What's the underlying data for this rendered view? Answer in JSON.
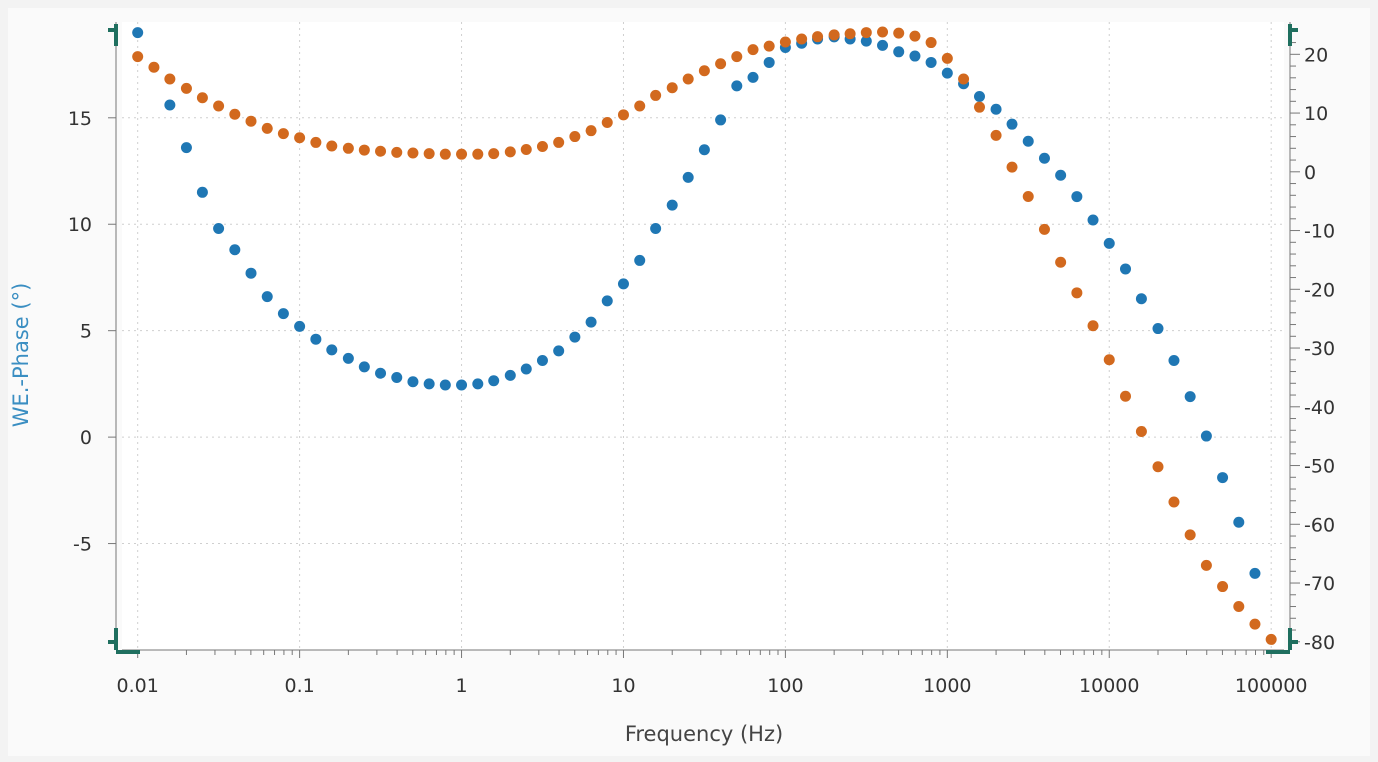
{
  "chart_data": {
    "type": "scatter",
    "title": "",
    "xlabel": "Frequency (Hz)",
    "ylabel_left": "WE.-Phase (°)",
    "ylabel_right": "",
    "x_scale": "log",
    "xlim": [
      0.008,
      120000
    ],
    "ylim_left": [
      -10,
      19.5
    ],
    "ylim_right": [
      -81.4,
      25.5
    ],
    "x_ticks": [
      {
        "value": 0.01,
        "label": "0.01"
      },
      {
        "value": 0.1,
        "label": "0.1"
      },
      {
        "value": 1,
        "label": "1"
      },
      {
        "value": 10,
        "label": "10"
      },
      {
        "value": 100,
        "label": "100"
      },
      {
        "value": 1000,
        "label": "1000"
      },
      {
        "value": 10000,
        "label": "10000"
      },
      {
        "value": 100000,
        "label": "100000"
      }
    ],
    "y_ticks_left": [
      {
        "value": 15,
        "label": "15"
      },
      {
        "value": 10,
        "label": "10"
      },
      {
        "value": 5,
        "label": "5"
      },
      {
        "value": 0,
        "label": "0"
      },
      {
        "value": -5,
        "label": "-5"
      }
    ],
    "y_ticks_right": [
      {
        "value": 20,
        "label": "20"
      },
      {
        "value": 10,
        "label": "10"
      },
      {
        "value": 0,
        "label": "0"
      },
      {
        "value": -10,
        "label": "-10"
      },
      {
        "value": -20,
        "label": "-20"
      },
      {
        "value": -30,
        "label": "-30"
      },
      {
        "value": -40,
        "label": "-40"
      },
      {
        "value": -50,
        "label": "-50"
      },
      {
        "value": -60,
        "label": "-60"
      },
      {
        "value": -70,
        "label": "-70"
      },
      {
        "value": -80,
        "label": "-80"
      }
    ],
    "grid": true,
    "grid_style": "dotted",
    "colors": {
      "series1": "#1f77b4",
      "series2": "#d2691e",
      "ylabel_left": "#3a8ec2",
      "axis_bracket": "#1f6f5f",
      "grid": "#cfcfcf",
      "axis": "#777777"
    },
    "series": [
      {
        "axis": "left",
        "x": [
          0.01,
          0.0158,
          0.02,
          0.0251,
          0.0316,
          0.0398,
          0.0501,
          0.0631,
          0.0794,
          0.1,
          0.126,
          0.158,
          0.2,
          0.251,
          0.316,
          0.398,
          0.501,
          0.631,
          0.794,
          1,
          1.26,
          1.58,
          2,
          2.51,
          3.16,
          3.98,
          5.01,
          6.31,
          7.94,
          10,
          12.6,
          15.8,
          20,
          25.1,
          31.6,
          39.8,
          50.1,
          63.1,
          79.4,
          100,
          126,
          158,
          200,
          251,
          316,
          398,
          501,
          631,
          794,
          1000,
          1260,
          1580,
          2000,
          2510,
          3160,
          3980,
          5010,
          6310,
          7940,
          10000,
          12600,
          15800,
          20000,
          25100,
          31600,
          39800,
          50100,
          63100,
          79400
        ],
        "y": [
          19.0,
          15.6,
          13.6,
          11.5,
          9.8,
          8.8,
          7.7,
          6.6,
          5.8,
          5.2,
          4.6,
          4.1,
          3.7,
          3.3,
          3.0,
          2.8,
          2.6,
          2.5,
          2.45,
          2.45,
          2.5,
          2.65,
          2.9,
          3.2,
          3.6,
          4.05,
          4.7,
          5.4,
          6.4,
          7.2,
          8.3,
          9.8,
          10.9,
          12.2,
          13.5,
          14.9,
          16.5,
          16.9,
          17.6,
          18.3,
          18.5,
          18.7,
          18.8,
          18.7,
          18.6,
          18.4,
          18.1,
          17.9,
          17.6,
          17.1,
          16.6,
          16.0,
          15.4,
          14.7,
          13.9,
          13.1,
          12.3,
          11.3,
          10.2,
          9.1,
          7.9,
          6.5,
          5.1,
          3.6,
          1.9,
          0.05,
          -1.9,
          -4.0,
          -6.4
        ]
      },
      {
        "axis": "right",
        "x": [
          0.01,
          0.0126,
          0.0158,
          0.02,
          0.0251,
          0.0316,
          0.0398,
          0.0501,
          0.0631,
          0.0794,
          0.1,
          0.126,
          0.158,
          0.2,
          0.251,
          0.316,
          0.398,
          0.501,
          0.631,
          0.794,
          1,
          1.26,
          1.58,
          2,
          2.51,
          3.16,
          3.98,
          5.01,
          6.31,
          7.94,
          10,
          12.6,
          15.8,
          20,
          25.1,
          31.6,
          39.8,
          50.1,
          63.1,
          79.4,
          100,
          126,
          158,
          200,
          251,
          316,
          398,
          501,
          631,
          794,
          1000,
          1260,
          1580,
          2000,
          2510,
          3160,
          3980,
          5010,
          6310,
          7940,
          10000,
          12600,
          15800,
          20000,
          25100,
          31600,
          39800,
          50100,
          63100,
          79400,
          100000
        ],
        "y": [
          19.6,
          17.8,
          15.8,
          14.2,
          12.6,
          11.2,
          9.8,
          8.6,
          7.4,
          6.5,
          5.8,
          5.0,
          4.4,
          4.0,
          3.7,
          3.5,
          3.3,
          3.2,
          3.1,
          3.0,
          3.0,
          3.0,
          3.1,
          3.4,
          3.8,
          4.3,
          5.0,
          6.0,
          7.0,
          8.4,
          9.7,
          11.2,
          13.0,
          14.3,
          15.8,
          17.2,
          18.4,
          19.6,
          20.8,
          21.4,
          22.1,
          22.6,
          23.0,
          23.3,
          23.5,
          23.7,
          23.8,
          23.6,
          23.1,
          22.0,
          19.3,
          15.8,
          11.0,
          6.2,
          0.8,
          -4.2,
          -9.8,
          -15.4,
          -20.6,
          -26.2,
          -32.0,
          -38.2,
          -44.2,
          -50.2,
          -56.2,
          -61.8,
          -67.0,
          -70.6,
          -74.0,
          -77.0,
          -79.6
        ]
      }
    ]
  }
}
